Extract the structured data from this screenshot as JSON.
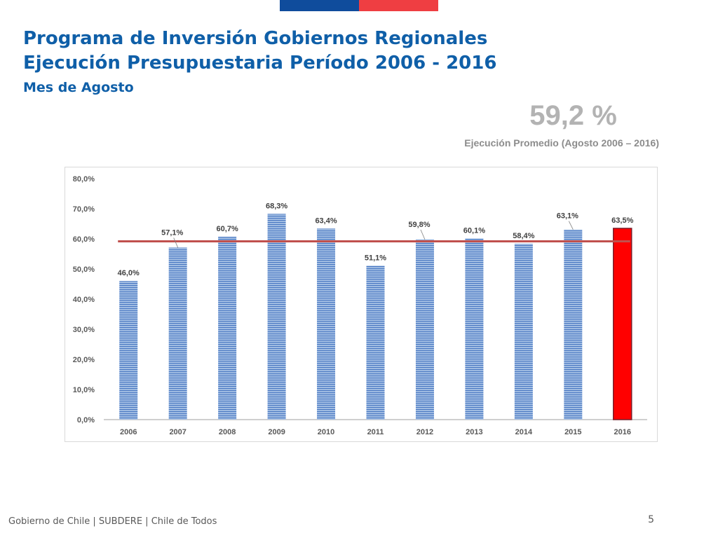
{
  "colors": {
    "title": "#0f5fa8",
    "bar_fill": "#a9c3e6",
    "bar_stripe": "#4a78c2",
    "highlight_bar": "#ff0000",
    "highlight_border": "#7a1f2b",
    "average_line": "#c0504d",
    "flag_blue": "#0f4c9c",
    "flag_red": "#ef3e42"
  },
  "header": {
    "title_line1": "Programa de Inversión Gobiernos Regionales",
    "title_line2": "Ejecución Presupuestaria Período 2006 - 2016",
    "subtitle": "Mes de Agosto"
  },
  "summary": {
    "average_value": "59,2 %",
    "average_label": "Ejecución Promedio (Agosto 2006 – 2016)"
  },
  "chart_data": {
    "type": "bar",
    "title": "",
    "xlabel": "",
    "ylabel": "",
    "categories": [
      "2006",
      "2007",
      "2008",
      "2009",
      "2010",
      "2011",
      "2012",
      "2013",
      "2014",
      "2015",
      "2016"
    ],
    "values": [
      46.0,
      57.1,
      60.7,
      68.3,
      63.4,
      51.1,
      59.8,
      60.1,
      58.4,
      63.1,
      63.5
    ],
    "data_labels": [
      "46,0%",
      "57,1%",
      "60,7%",
      "68,3%",
      "63,4%",
      "51,1%",
      "59,8%",
      "60,1%",
      "58,4%",
      "63,1%",
      "63,5%"
    ],
    "highlight_category": "2016",
    "average_line": 59.2,
    "ylim": [
      0,
      80
    ],
    "yticks": [
      0,
      10,
      20,
      30,
      40,
      50,
      60,
      70,
      80
    ],
    "ytick_labels": [
      "0,0%",
      "10,0%",
      "20,0%",
      "30,0%",
      "40,0%",
      "50,0%",
      "60,0%",
      "70,0%",
      "80,0%"
    ],
    "grid": false,
    "legend": "none"
  },
  "footer": {
    "text": "Gobierno de Chile | SUBDERE | Chile de Todos",
    "page_number": "5"
  }
}
